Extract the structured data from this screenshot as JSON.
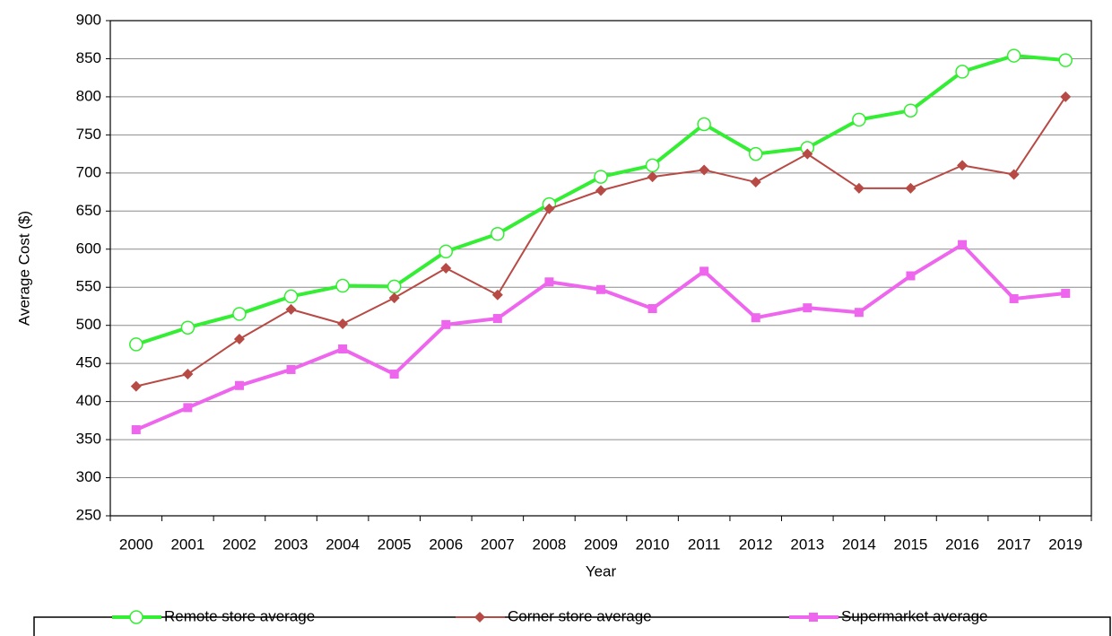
{
  "chart_data": {
    "type": "line",
    "x_label": "Year",
    "y_label": "Average Cost ($)",
    "categories": [
      "2000",
      "2001",
      "2002",
      "2003",
      "2004",
      "2005",
      "2006",
      "2007",
      "2008",
      "2009",
      "2010",
      "2011",
      "2012",
      "2013",
      "2014",
      "2015",
      "2016",
      "2017",
      "2019"
    ],
    "series": [
      {
        "name": "Remote store average",
        "color": "#33ee33",
        "marker": "circle",
        "line_width": 4,
        "values": [
          475,
          497,
          515,
          538,
          552,
          551,
          597,
          620,
          659,
          695,
          710,
          764,
          725,
          733,
          770,
          782,
          833,
          854,
          848
        ]
      },
      {
        "name": "Corner store average",
        "color": "#b84a45",
        "marker": "diamond",
        "line_width": 2,
        "values": [
          420,
          436,
          482,
          521,
          502,
          536,
          575,
          540,
          653,
          677,
          695,
          704,
          688,
          725,
          680,
          680,
          710,
          698,
          800
        ]
      },
      {
        "name": "Supermarket average",
        "color": "#ee66ee",
        "marker": "square",
        "line_width": 4,
        "values": [
          363,
          392,
          421,
          442,
          469,
          436,
          501,
          509,
          557,
          547,
          522,
          571,
          510,
          523,
          517,
          565,
          606,
          535,
          542
        ]
      }
    ],
    "ylim": [
      250,
      900
    ],
    "yticks": [
      250,
      300,
      350,
      400,
      450,
      500,
      550,
      600,
      650,
      700,
      750,
      800,
      850,
      900
    ],
    "grid": true,
    "legend": "bottom"
  }
}
